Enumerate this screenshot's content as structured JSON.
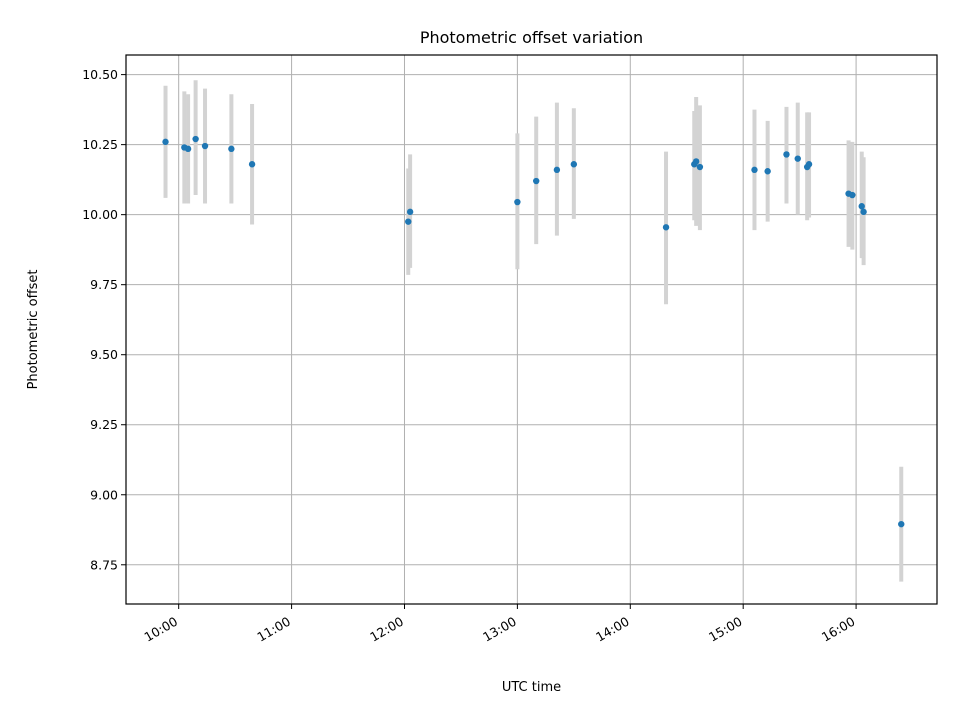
{
  "chart_data": {
    "type": "scatter",
    "title": "Photometric offset variation",
    "xlabel": "UTC time",
    "ylabel": "Photometric offset",
    "xlim": [
      "09:32",
      "16:43"
    ],
    "ylim": [
      8.61,
      10.57
    ],
    "x_ticks": [
      "10:00",
      "11:00",
      "12:00",
      "13:00",
      "14:00",
      "15:00",
      "16:00"
    ],
    "y_ticks": [
      "8.75",
      "9.00",
      "9.25",
      "9.50",
      "9.75",
      "10.00",
      "10.25",
      "10.50"
    ],
    "grid": true,
    "colors": {
      "points": "#1f77b4",
      "error_bars": "#d3d3d3"
    },
    "series": [
      {
        "points": [
          {
            "x": "09:53",
            "y": 10.26,
            "ylo": 10.06,
            "yhi": 10.46
          },
          {
            "x": "10:03",
            "y": 10.24,
            "ylo": 10.04,
            "yhi": 10.44
          },
          {
            "x": "10:05",
            "y": 10.235,
            "ylo": 10.04,
            "yhi": 10.43
          },
          {
            "x": "10:09",
            "y": 10.27,
            "ylo": 10.07,
            "yhi": 10.48
          },
          {
            "x": "10:14",
            "y": 10.245,
            "ylo": 10.04,
            "yhi": 10.45
          },
          {
            "x": "10:28",
            "y": 10.235,
            "ylo": 10.04,
            "yhi": 10.43
          },
          {
            "x": "10:39",
            "y": 10.18,
            "ylo": 9.965,
            "yhi": 10.395
          },
          {
            "x": "12:02",
            "y": 9.975,
            "ylo": 9.785,
            "yhi": 10.165
          },
          {
            "x": "12:03",
            "y": 10.01,
            "ylo": 9.81,
            "yhi": 10.215
          },
          {
            "x": "13:00",
            "y": 10.045,
            "ylo": 9.805,
            "yhi": 10.29
          },
          {
            "x": "13:10",
            "y": 10.12,
            "ylo": 9.895,
            "yhi": 10.35
          },
          {
            "x": "13:21",
            "y": 10.16,
            "ylo": 9.925,
            "yhi": 10.4
          },
          {
            "x": "13:30",
            "y": 10.18,
            "ylo": 9.985,
            "yhi": 10.38
          },
          {
            "x": "14:19",
            "y": 9.955,
            "ylo": 9.68,
            "yhi": 10.225
          },
          {
            "x": "14:34",
            "y": 10.18,
            "ylo": 9.98,
            "yhi": 10.37
          },
          {
            "x": "14:35",
            "y": 10.19,
            "ylo": 9.96,
            "yhi": 10.42
          },
          {
            "x": "14:37",
            "y": 10.17,
            "ylo": 9.945,
            "yhi": 10.39
          },
          {
            "x": "15:06",
            "y": 10.16,
            "ylo": 9.945,
            "yhi": 10.375
          },
          {
            "x": "15:13",
            "y": 10.155,
            "ylo": 9.975,
            "yhi": 10.335
          },
          {
            "x": "15:23",
            "y": 10.215,
            "ylo": 10.04,
            "yhi": 10.385
          },
          {
            "x": "15:29",
            "y": 10.2,
            "ylo": 10.0,
            "yhi": 10.4
          },
          {
            "x": "15:34",
            "y": 10.17,
            "ylo": 9.98,
            "yhi": 10.365
          },
          {
            "x": "15:35",
            "y": 10.18,
            "ylo": 9.99,
            "yhi": 10.365
          },
          {
            "x": "15:56",
            "y": 10.075,
            "ylo": 9.885,
            "yhi": 10.265
          },
          {
            "x": "15:58",
            "y": 10.07,
            "ylo": 9.875,
            "yhi": 10.26
          },
          {
            "x": "16:03",
            "y": 10.03,
            "ylo": 9.845,
            "yhi": 10.225
          },
          {
            "x": "16:04",
            "y": 10.01,
            "ylo": 9.82,
            "yhi": 10.205
          },
          {
            "x": "16:24",
            "y": 8.895,
            "ylo": 8.69,
            "yhi": 9.1
          }
        ]
      }
    ]
  }
}
